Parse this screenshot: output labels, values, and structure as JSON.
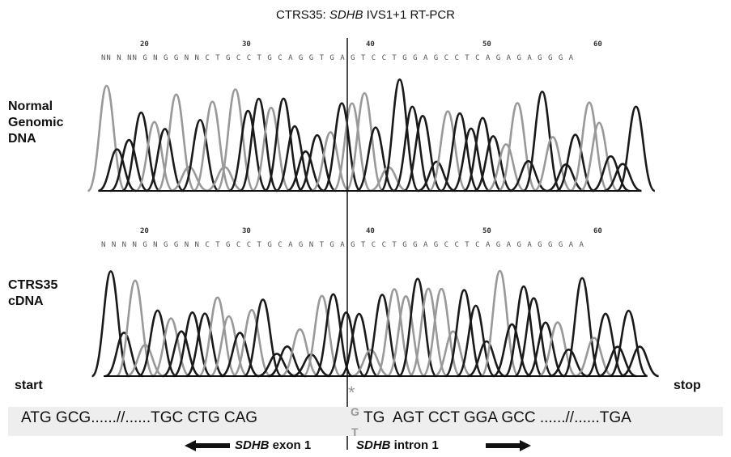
{
  "title": {
    "prefix": "CTRS35: ",
    "gene": "SDHB",
    "suffix": " IVS1+1 RT-PCR"
  },
  "panels": [
    {
      "label_lines": [
        "Normal",
        "Genomic",
        "DNA"
      ],
      "sequence": "NN N NN G N G G N N C T G C C T G C A G G T G A G T C C T G G A G C C T C A G A G A G G G A",
      "ticks": [
        "20",
        "30",
        "40",
        "50",
        "60"
      ]
    },
    {
      "label_lines": [
        "CTRS35",
        "cDNA"
      ],
      "sequence": "N N N N G N G G N N C T G C C T G C A G N T G A G T C C T G G A G C C T C A G A G A G G G A A",
      "ticks": [
        "20",
        "30",
        "40",
        "50",
        "60"
      ]
    }
  ],
  "start_label": "start",
  "stop_label": "stop",
  "mutation_marker": "*",
  "mutation_g": "G",
  "mutation_t": "T",
  "exon_sequence": "ATG GCG......//......TGC CTG CAG",
  "intron_sequence": "TG  AGT CCT GGA GCC ......//......TGA",
  "exon_caption": {
    "gene": "SDHB",
    "rest": " exon 1"
  },
  "intron_caption": {
    "gene": "SDHB",
    "rest": " intron 1"
  },
  "colors": {
    "trace_dark": "#1a1a1a",
    "trace_light": "#999999",
    "bar_bg": "#eeeeee"
  }
}
